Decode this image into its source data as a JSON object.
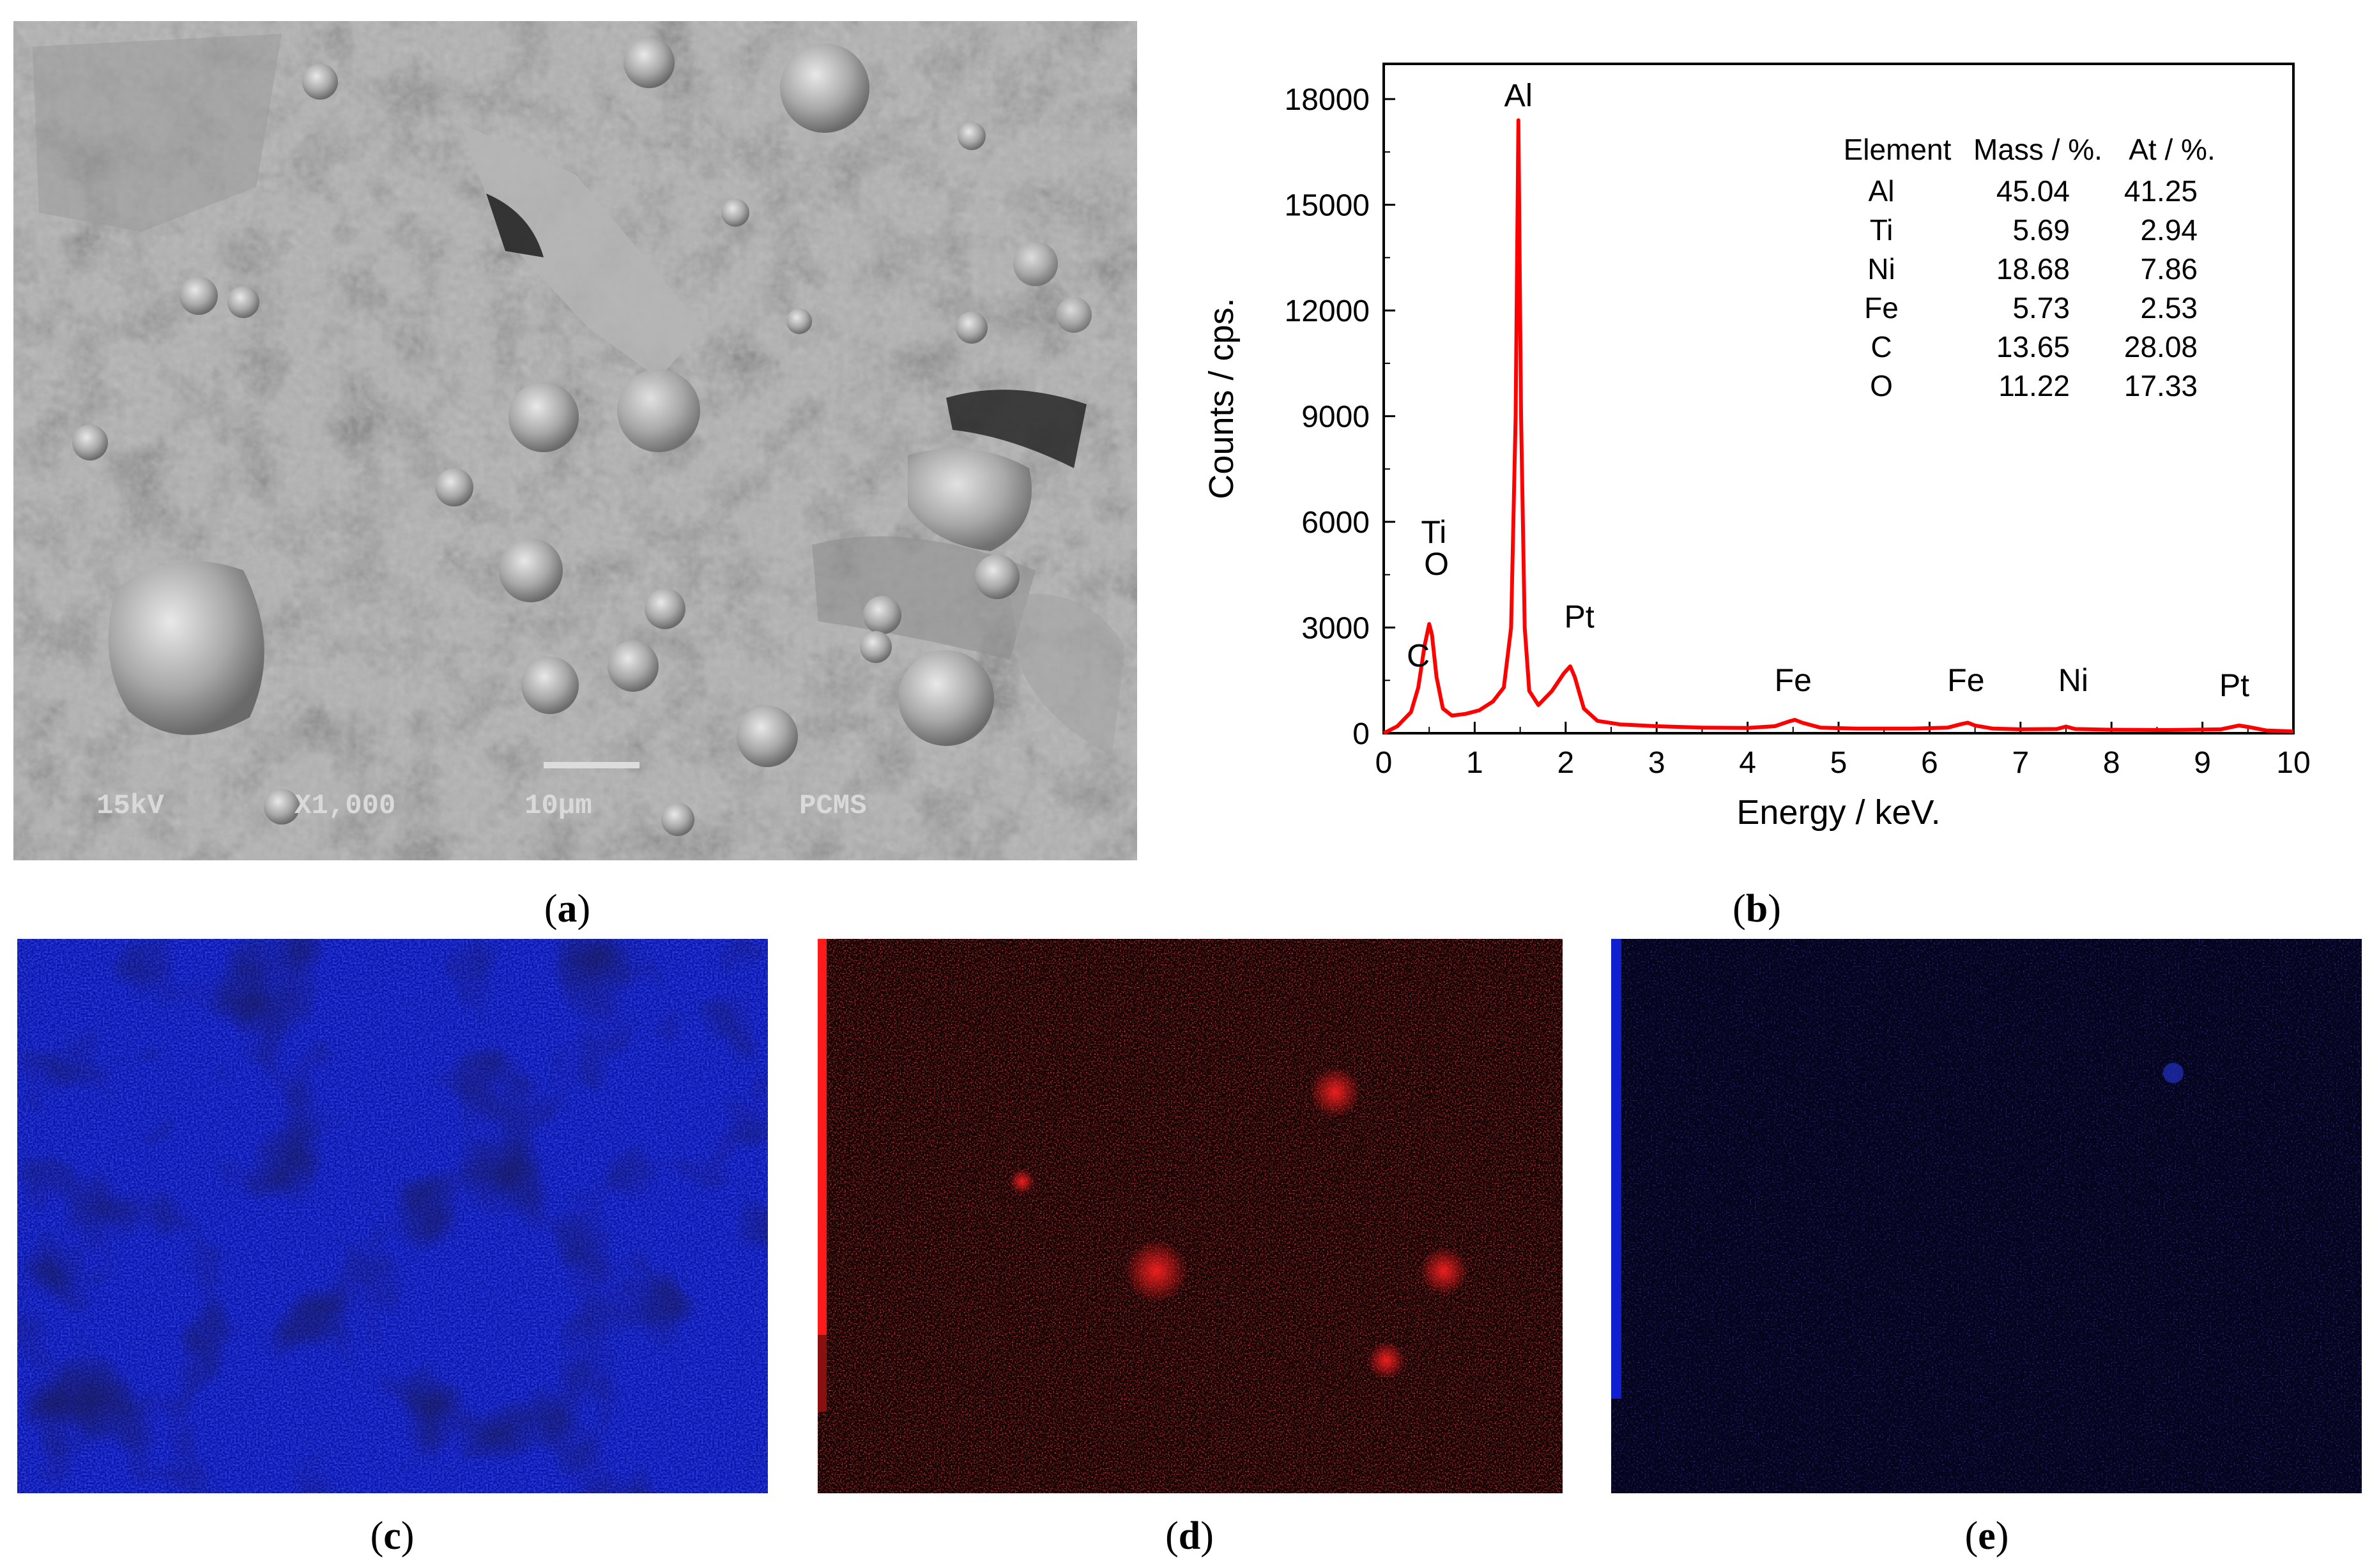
{
  "panels": {
    "a": {
      "label": "a",
      "sem_overlay": {
        "voltage": "15kV",
        "magnification": "X1,000",
        "scale_bar": "10μm",
        "tag": "PCMS"
      }
    },
    "b": {
      "label": "b"
    },
    "c": {
      "label": "c"
    },
    "d": {
      "label": "d"
    },
    "e": {
      "label": "e"
    }
  },
  "chart_data": {
    "type": "line",
    "xlabel": "Energy / keV.",
    "ylabel": "Counts / cps.",
    "xlim": [
      0,
      10
    ],
    "ylim": [
      0,
      19000
    ],
    "xticks": [
      0,
      1,
      2,
      3,
      4,
      5,
      6,
      7,
      8,
      9,
      10
    ],
    "yticks": [
      0,
      3000,
      6000,
      9000,
      12000,
      15000,
      18000
    ],
    "line_color": "#ff0000",
    "grid": false,
    "series": [
      {
        "x": [
          0,
          0.15,
          0.3,
          0.38,
          0.45,
          0.5,
          0.53,
          0.58,
          0.65,
          0.75,
          0.9,
          1.05,
          1.2,
          1.32,
          1.4,
          1.45,
          1.48,
          1.51,
          1.55,
          1.6,
          1.7,
          1.85,
          1.98,
          2.05,
          2.1,
          2.2,
          2.35,
          2.6,
          3.0,
          3.5,
          4.0,
          4.3,
          4.45,
          4.52,
          4.6,
          4.8,
          5.2,
          5.8,
          6.2,
          6.35,
          6.42,
          6.5,
          6.7,
          7.0,
          7.4,
          7.5,
          7.6,
          8.0,
          8.6,
          9.2,
          9.4,
          9.5,
          9.7,
          10.0
        ],
        "y": [
          0,
          200,
          600,
          1300,
          2500,
          3100,
          2800,
          1600,
          700,
          500,
          550,
          650,
          900,
          1300,
          3000,
          9000,
          17400,
          9000,
          3000,
          1200,
          800,
          1200,
          1700,
          1900,
          1600,
          700,
          350,
          250,
          200,
          160,
          150,
          200,
          330,
          380,
          300,
          160,
          130,
          130,
          160,
          260,
          300,
          220,
          130,
          110,
          120,
          190,
          120,
          100,
          90,
          110,
          220,
          180,
          80,
          50
        ]
      }
    ],
    "annotations": [
      {
        "text": "Al",
        "x": 1.48,
        "y": 17400
      },
      {
        "text": "Ti",
        "x": 0.55,
        "y": 5000
      },
      {
        "text": "O",
        "x": 0.58,
        "y": 4100
      },
      {
        "text": "C",
        "x": 0.38,
        "y": 1500
      },
      {
        "text": "Pt",
        "x": 2.15,
        "y": 2600
      },
      {
        "text": "Fe",
        "x": 4.5,
        "y": 800
      },
      {
        "text": "Fe",
        "x": 6.4,
        "y": 800
      },
      {
        "text": "Ni",
        "x": 7.58,
        "y": 800
      },
      {
        "text": "Pt",
        "x": 9.35,
        "y": 650
      }
    ],
    "table": {
      "headers": [
        "Element",
        "Mass / %.",
        "At / %."
      ],
      "rows": [
        [
          "Al",
          "45.04",
          "41.25"
        ],
        [
          "Ti",
          "5.69",
          "2.94"
        ],
        [
          "Ni",
          "18.68",
          "7.86"
        ],
        [
          "Fe",
          "5.73",
          "2.53"
        ],
        [
          "C",
          "13.65",
          "28.08"
        ],
        [
          "O",
          "11.22",
          "17.33"
        ]
      ]
    }
  }
}
